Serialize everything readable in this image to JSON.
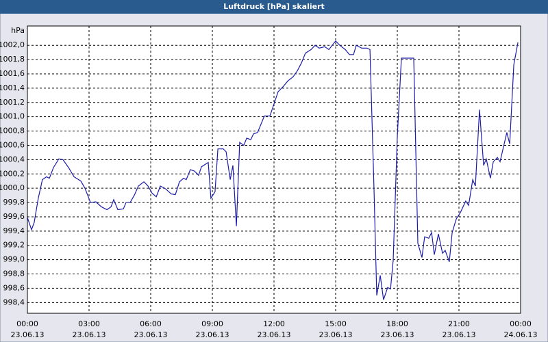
{
  "chart_data": {
    "type": "line",
    "title": "Luftdruck [hPa] skaliert",
    "y_label": "hPa",
    "color": "#1c1caa",
    "grid": true,
    "x": [
      0,
      0.2,
      0.33,
      0.53,
      0.73,
      0.93,
      1.07,
      1.27,
      1.53,
      1.73,
      2.0,
      2.27,
      2.6,
      2.8,
      3.07,
      3.33,
      3.6,
      3.87,
      4.07,
      4.2,
      4.4,
      4.67,
      4.8,
      5.0,
      5.2,
      5.4,
      5.67,
      5.87,
      6.07,
      6.27,
      6.47,
      6.73,
      7.0,
      7.2,
      7.4,
      7.6,
      7.73,
      7.93,
      8.13,
      8.33,
      8.47,
      8.8,
      8.93,
      9.13,
      9.27,
      9.53,
      9.67,
      9.87,
      10.0,
      10.17,
      10.33,
      10.53,
      10.67,
      10.87,
      11.0,
      11.2,
      11.33,
      11.53,
      11.8,
      12.0,
      12.2,
      12.47,
      12.67,
      12.93,
      13.13,
      13.33,
      13.53,
      13.8,
      14.0,
      14.2,
      14.47,
      14.67,
      15.0,
      15.2,
      15.47,
      15.67,
      15.87,
      16.0,
      16.27,
      16.53,
      16.67,
      16.87,
      17.0,
      17.17,
      17.33,
      17.53,
      17.67,
      17.8,
      18.0,
      18.2,
      18.8,
      19.0,
      19.2,
      19.33,
      19.53,
      19.67,
      19.8,
      20.0,
      20.2,
      20.33,
      20.53,
      20.67,
      20.87,
      21.07,
      21.33,
      21.47,
      21.67,
      21.8,
      22.0,
      22.2,
      22.33,
      22.53,
      22.67,
      22.87,
      23.0,
      23.33,
      23.47,
      23.67,
      23.87
    ],
    "values": [
      999.59,
      999.42,
      999.52,
      999.86,
      1000.12,
      1000.16,
      1000.14,
      1000.29,
      1000.41,
      1000.4,
      1000.29,
      1000.16,
      1000.1,
      1000.0,
      999.8,
      999.81,
      999.74,
      999.7,
      999.74,
      999.84,
      999.7,
      999.71,
      999.8,
      999.8,
      999.9,
      1000.03,
      1000.09,
      1000.03,
      999.93,
      999.88,
      1000.03,
      999.99,
      999.92,
      999.91,
      1000.09,
      1000.14,
      1000.12,
      1000.26,
      1000.24,
      1000.18,
      1000.3,
      1000.36,
      999.86,
      999.95,
      1000.55,
      1000.55,
      1000.51,
      1000.12,
      1000.32,
      999.47,
      1000.64,
      1000.6,
      1000.7,
      1000.68,
      1000.76,
      1000.78,
      1000.87,
      1001.01,
      1001.01,
      1001.18,
      1001.35,
      1001.43,
      1001.5,
      1001.56,
      1001.64,
      1001.75,
      1001.89,
      1001.94,
      1002.0,
      1001.96,
      1001.98,
      1001.94,
      1002.06,
      1002.0,
      1001.94,
      1001.87,
      1001.87,
      1002.0,
      1001.96,
      1001.96,
      1001.94,
      999.95,
      998.5,
      998.78,
      998.44,
      998.61,
      998.59,
      998.99,
      1000.72,
      1001.82,
      1001.82,
      999.23,
      999.03,
      999.32,
      999.3,
      999.38,
      999.07,
      999.36,
      999.09,
      999.13,
      998.97,
      999.38,
      999.57,
      999.66,
      999.82,
      999.76,
      1000.12,
      1000.03,
      1001.1,
      1000.32,
      1000.41,
      1000.14,
      1000.37,
      1000.43,
      1000.37,
      1000.78,
      1000.62,
      1001.73,
      1002.04
    ],
    "xlim": [
      0,
      24
    ],
    "xticks": [
      {
        "value": 0,
        "label": "00:00"
      },
      {
        "value": 3,
        "label": "03:00"
      },
      {
        "value": 6,
        "label": "06:00"
      },
      {
        "value": 9,
        "label": "09:00"
      },
      {
        "value": 12,
        "label": "12:00"
      },
      {
        "value": 15,
        "label": "15:00"
      },
      {
        "value": 18,
        "label": "18:00"
      },
      {
        "value": 21,
        "label": "21:00"
      },
      {
        "value": 24,
        "label": "00:00"
      }
    ],
    "xtick_dates": [
      "23.06.13",
      "23.06.13",
      "23.06.13",
      "23.06.13",
      "23.06.13",
      "23.06.13",
      "23.06.13",
      "23.06.13",
      "24.06.13"
    ],
    "ylim": [
      998.25,
      1002.27
    ],
    "yticks": [
      {
        "value": 998.4,
        "label": "998,4"
      },
      {
        "value": 998.6,
        "label": "998,6"
      },
      {
        "value": 998.8,
        "label": "998,8"
      },
      {
        "value": 999.0,
        "label": "999,0"
      },
      {
        "value": 999.2,
        "label": "999,2"
      },
      {
        "value": 999.4,
        "label": "999,4"
      },
      {
        "value": 999.6,
        "label": "999,6"
      },
      {
        "value": 999.8,
        "label": "999,8"
      },
      {
        "value": 1000.0,
        "label": "1000,0"
      },
      {
        "value": 1000.2,
        "label": "1000,2"
      },
      {
        "value": 1000.4,
        "label": "1000,4"
      },
      {
        "value": 1000.6,
        "label": "1000,6"
      },
      {
        "value": 1000.8,
        "label": "1000,8"
      },
      {
        "value": 1001.0,
        "label": "1001,0"
      },
      {
        "value": 1001.2,
        "label": "1001,2"
      },
      {
        "value": 1001.4,
        "label": "1001,4"
      },
      {
        "value": 1001.6,
        "label": "1001,6"
      },
      {
        "value": 1001.8,
        "label": "1001,8"
      },
      {
        "value": 1002.0,
        "label": "1002,0"
      }
    ]
  }
}
